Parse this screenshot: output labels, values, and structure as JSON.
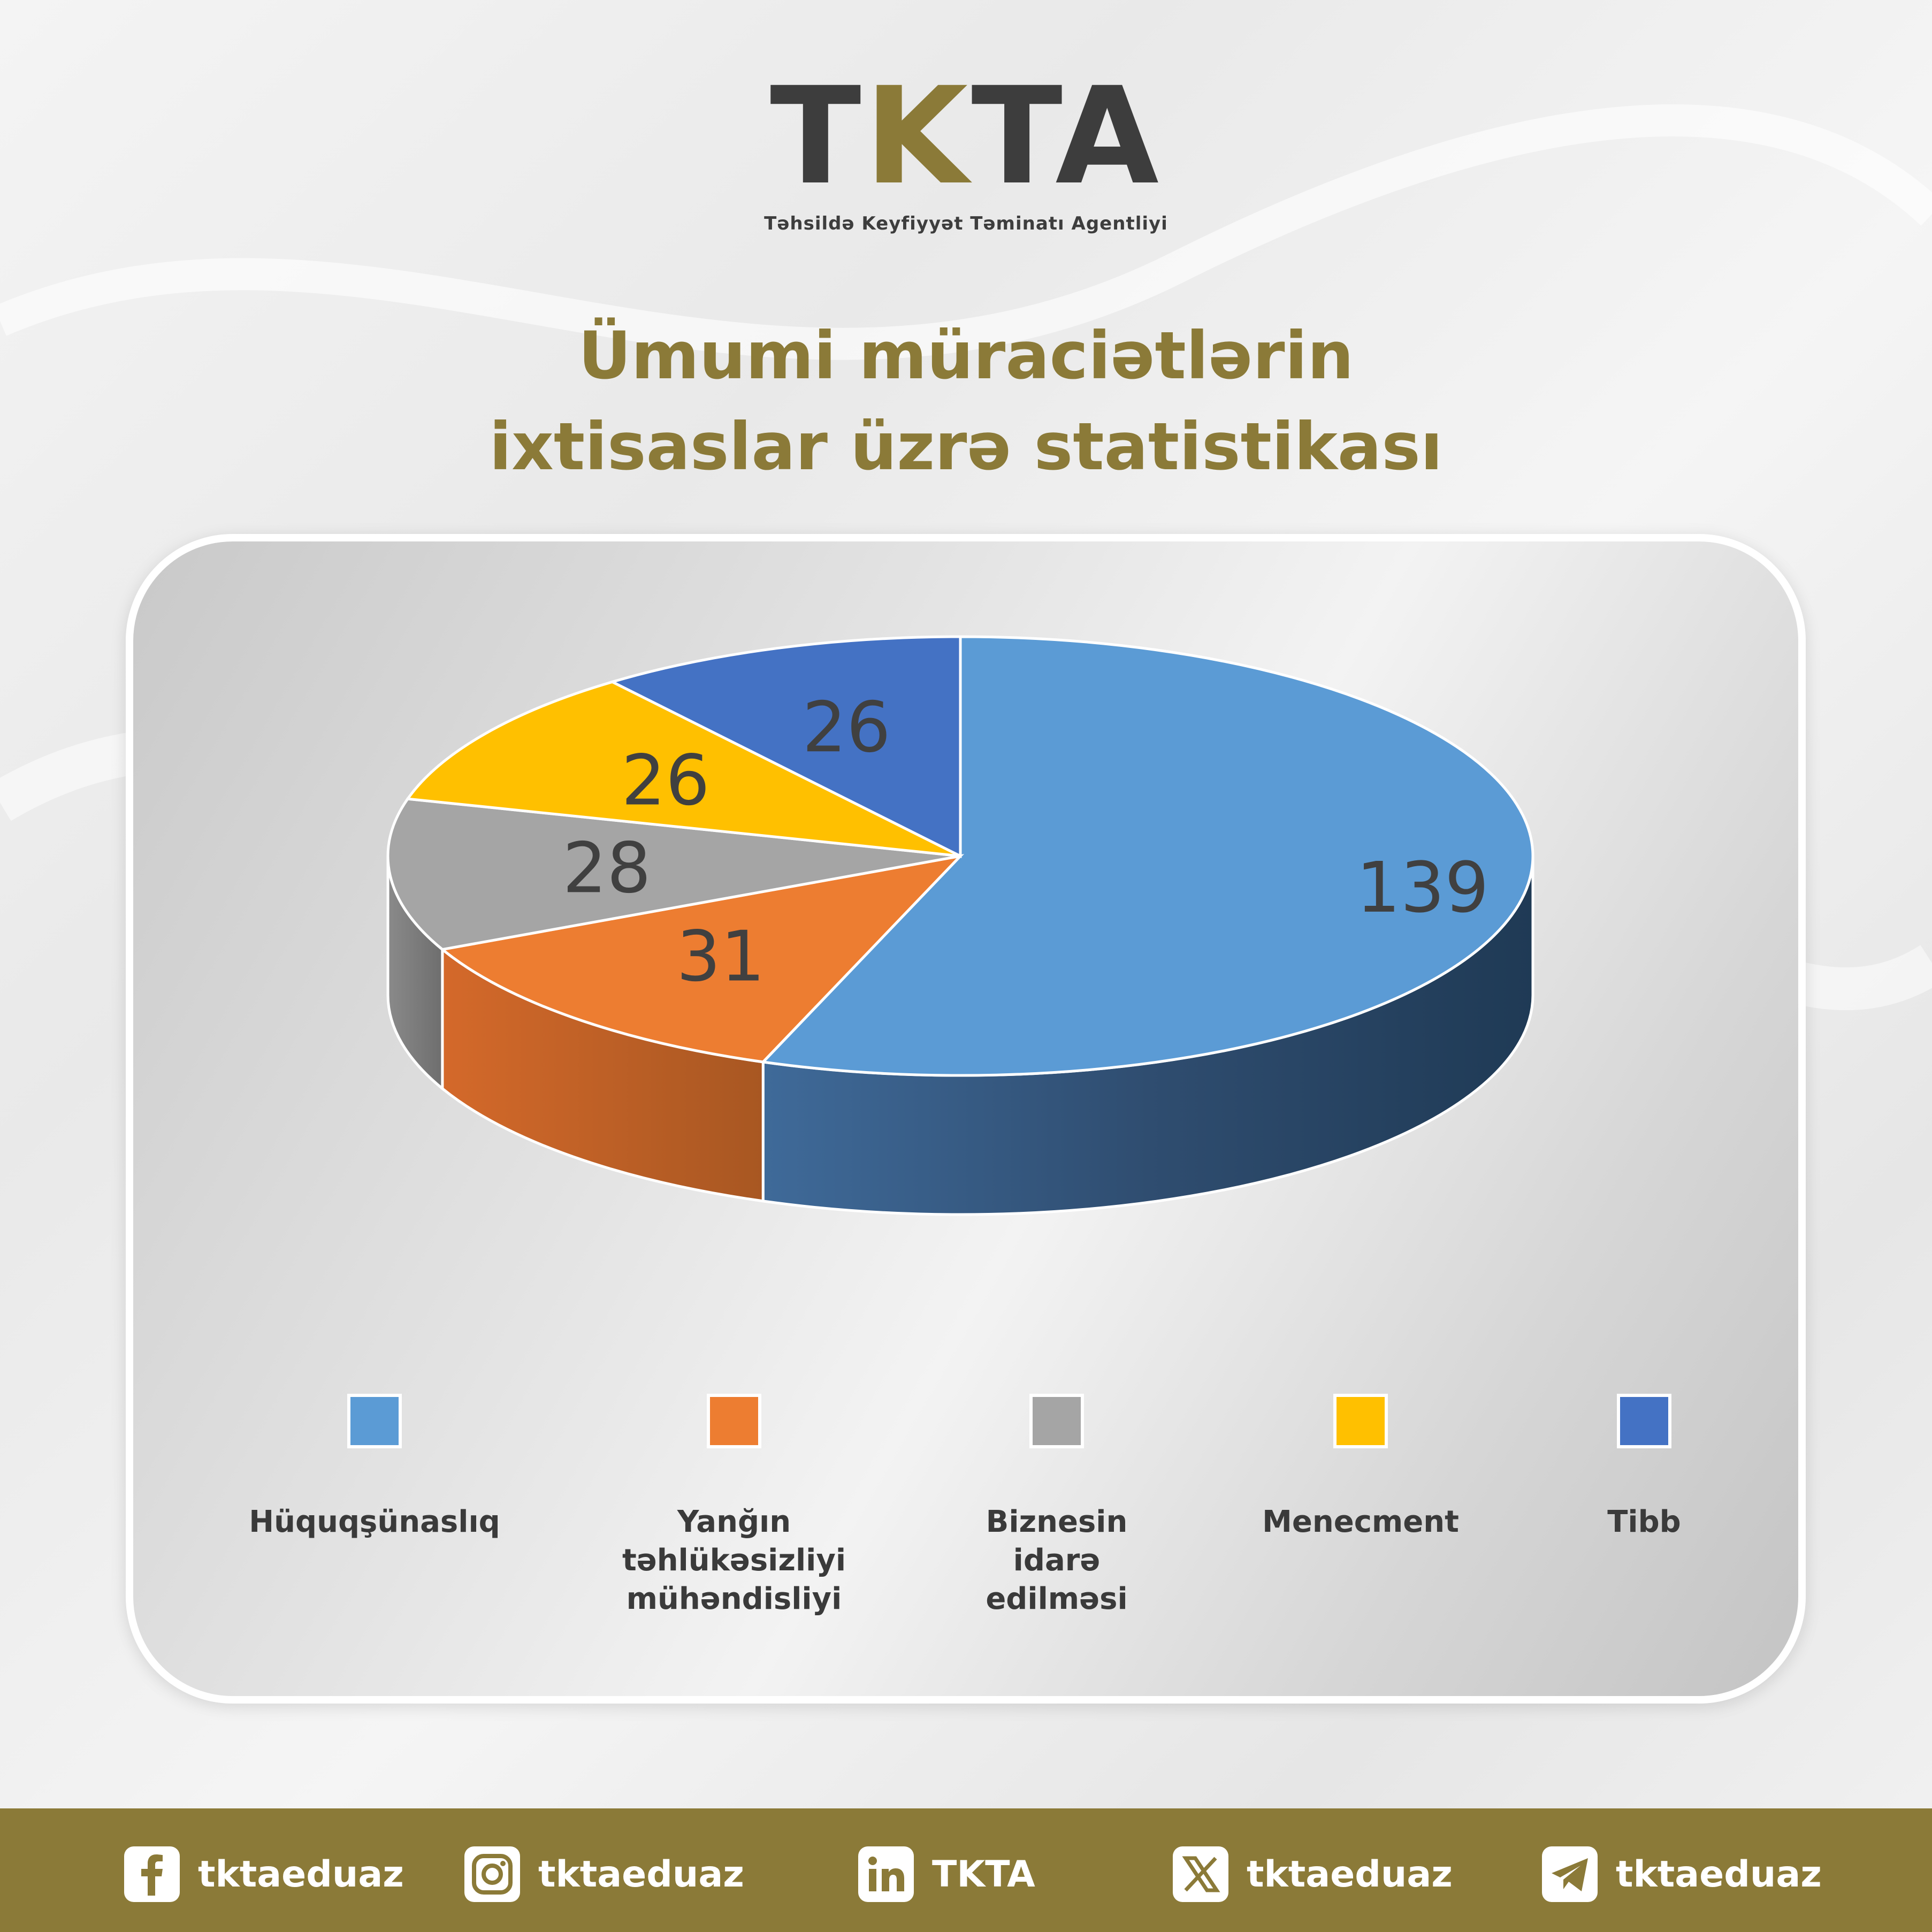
{
  "logo": {
    "mark_left": "T",
    "mark_k": "K",
    "mark_right": "TA",
    "subtitle": "Təhsildə Keyfiyyət Təminatı Agentliyi"
  },
  "title_line1": "Ümumi müraciətlərin",
  "title_line2": "ixtisaslar üzrə statistikası",
  "chart_data": {
    "type": "pie",
    "categories": [
      "Hüquqşünaslıq",
      "Yanğın təhlükəsizliyi mühəndisliyi",
      "Biznesin idarə edilməsi",
      "Menecment",
      "Tibb"
    ],
    "values": [
      139,
      31,
      28,
      26,
      26
    ],
    "colors": [
      "#5b9bd5",
      "#ed7d31",
      "#a5a5a5",
      "#ffc000",
      "#4472c4"
    ],
    "legend_position": "bottom",
    "legend_lines": [
      [
        "Hüquqşünaslıq"
      ],
      [
        "Yanğın",
        "təhlükəsizliyi",
        "mühəndisliyi"
      ],
      [
        "Biznesin",
        "idarə",
        "edilməsi"
      ],
      [
        "Menecment"
      ],
      [
        "Tibb"
      ]
    ]
  },
  "footer": {
    "items": [
      {
        "icon": "facebook-icon",
        "text": "tktaeduaz"
      },
      {
        "icon": "instagram-icon",
        "text": "tktaeduaz"
      },
      {
        "icon": "linkedin-icon",
        "text": "TKTA"
      },
      {
        "icon": "x-icon",
        "text": "tktaeduaz"
      },
      {
        "icon": "telegram-icon",
        "text": "tktaeduaz"
      }
    ]
  }
}
